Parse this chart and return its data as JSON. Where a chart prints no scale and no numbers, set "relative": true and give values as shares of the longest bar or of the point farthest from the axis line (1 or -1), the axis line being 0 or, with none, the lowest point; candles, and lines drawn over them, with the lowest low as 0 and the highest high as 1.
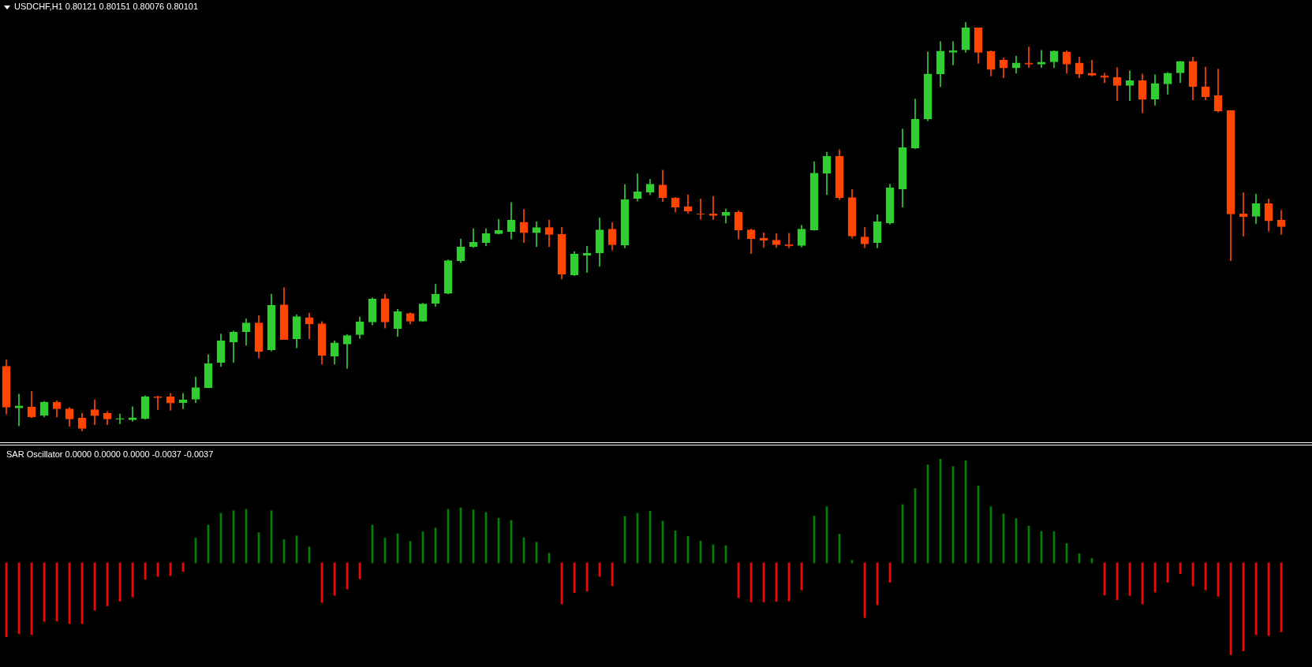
{
  "chart_data": [
    {
      "type": "candlestick",
      "title": "USDCHF,H1  0.80121 0.80151 0.80076 0.80101",
      "relative": true,
      "categories": [
        null,
        null,
        null,
        null,
        null,
        null,
        null,
        null,
        null,
        null,
        null,
        null,
        null,
        null,
        null,
        null,
        null,
        null,
        null,
        null,
        null,
        null,
        null,
        null,
        null,
        null,
        null,
        null,
        null,
        null,
        null,
        null,
        null,
        null,
        null,
        null,
        null,
        null,
        null,
        null,
        null,
        null,
        null,
        null,
        null,
        null,
        null,
        null,
        null,
        null,
        null,
        null,
        null,
        null,
        null,
        null,
        null,
        null,
        null,
        null,
        null,
        null,
        null,
        null,
        null,
        null,
        null,
        null,
        null,
        null,
        null,
        null,
        null,
        null,
        null,
        null,
        null,
        null,
        null,
        null,
        null,
        null,
        null,
        null,
        null,
        null,
        null,
        null,
        null,
        null,
        null,
        null,
        null,
        null,
        null,
        null,
        null,
        null,
        null,
        null,
        null,
        null
      ],
      "ohlc": [
        [
          0.159,
          0.174,
          0.042,
          0.059
        ],
        [
          0.057,
          0.091,
          0.013,
          0.062
        ],
        [
          0.059,
          0.097,
          0.033,
          0.035
        ],
        [
          0.039,
          0.073,
          0.035,
          0.071
        ],
        [
          0.071,
          0.075,
          0.035,
          0.055
        ],
        [
          0.055,
          0.058,
          0.012,
          0.03
        ],
        [
          0.032,
          0.044,
          0,
          0.007
        ],
        [
          0.053,
          0.077,
          0.016,
          0.038
        ],
        [
          0.044,
          0.048,
          0.016,
          0.03
        ],
        [
          0.029,
          0.042,
          0.018,
          0.031
        ],
        [
          0.028,
          0.06,
          0.024,
          0.033
        ],
        [
          0.031,
          0.087,
          0.029,
          0.084
        ],
        [
          0.084,
          0.086,
          0.053,
          0.082
        ],
        [
          0.084,
          0.093,
          0.051,
          0.069
        ],
        [
          0.07,
          0.093,
          0.055,
          0.077
        ],
        [
          0.078,
          0.133,
          0.07,
          0.107
        ],
        [
          0.106,
          0.187,
          0.106,
          0.165
        ],
        [
          0.168,
          0.238,
          0.158,
          0.221
        ],
        [
          0.218,
          0.245,
          0.168,
          0.242
        ],
        [
          0.243,
          0.275,
          0.21,
          0.265
        ],
        [
          0.265,
          0.283,
          0.179,
          0.195
        ],
        [
          0.199,
          0.335,
          0.196,
          0.308
        ],
        [
          0.309,
          0.351,
          0.224,
          0.224
        ],
        [
          0.226,
          0.285,
          0.204,
          0.28
        ],
        [
          0.278,
          0.289,
          0.226,
          0.262
        ],
        [
          0.263,
          0.268,
          0.164,
          0.185
        ],
        [
          0.183,
          0.221,
          0.164,
          0.216
        ],
        [
          0.213,
          0.237,
          0.154,
          0.234
        ],
        [
          0.236,
          0.279,
          0.227,
          0.267
        ],
        [
          0.267,
          0.326,
          0.26,
          0.323
        ],
        [
          0.324,
          0.335,
          0.252,
          0.267
        ],
        [
          0.251,
          0.298,
          0.232,
          0.292
        ],
        [
          0.288,
          0.29,
          0.262,
          0.269
        ],
        [
          0.269,
          0.313,
          0.268,
          0.311
        ],
        [
          0.313,
          0.359,
          0.305,
          0.335
        ],
        [
          0.337,
          0.419,
          0.336,
          0.417
        ],
        [
          0.417,
          0.47,
          0.412,
          0.45
        ],
        [
          0.451,
          0.495,
          0.449,
          0.462
        ],
        [
          0.461,
          0.495,
          0.453,
          0.483
        ],
        [
          0.483,
          0.518,
          0.482,
          0.491
        ],
        [
          0.488,
          0.559,
          0.47,
          0.516
        ],
        [
          0.511,
          0.542,
          0.461,
          0.485
        ],
        [
          0.485,
          0.512,
          0.451,
          0.498
        ],
        [
          0.498,
          0.516,
          0.451,
          0.481
        ],
        [
          0.481,
          0.499,
          0.372,
          0.384
        ],
        [
          0.382,
          0.439,
          0.38,
          0.433
        ],
        [
          0.43,
          0.452,
          0.388,
          0.435
        ],
        [
          0.436,
          0.522,
          0.403,
          0.492
        ],
        [
          0.494,
          0.51,
          0.443,
          0.456
        ],
        [
          0.455,
          0.603,
          0.448,
          0.566
        ],
        [
          0.569,
          0.63,
          0.563,
          0.585
        ],
        [
          0.584,
          0.616,
          0.578,
          0.604
        ],
        [
          0.602,
          0.638,
          0.562,
          0.571
        ],
        [
          0.57,
          0.571,
          0.536,
          0.548
        ],
        [
          0.549,
          0.578,
          0.533,
          0.538
        ],
        [
          0.531,
          0.568,
          0.518,
          0.53
        ],
        [
          0.531,
          0.574,
          0.517,
          0.527
        ],
        [
          0.527,
          0.543,
          0.509,
          0.535
        ],
        [
          0.535,
          0.539,
          0.47,
          0.492
        ],
        [
          0.492,
          0.494,
          0.434,
          0.471
        ],
        [
          0.472,
          0.485,
          0.449,
          0.467
        ],
        [
          0.467,
          0.483,
          0.449,
          0.456
        ],
        [
          0.456,
          0.484,
          0.448,
          0.453
        ],
        [
          0.454,
          0.503,
          0.45,
          0.494
        ],
        [
          0.492,
          0.659,
          0.491,
          0.631
        ],
        [
          0.63,
          0.682,
          0.578,
          0.672
        ],
        [
          0.672,
          0.688,
          0.566,
          0.571
        ],
        [
          0.571,
          0.591,
          0.472,
          0.477
        ],
        [
          0.475,
          0.498,
          0.448,
          0.458
        ],
        [
          0.461,
          0.529,
          0.448,
          0.512
        ],
        [
          0.509,
          0.604,
          0.506,
          0.595
        ],
        [
          0.592,
          0.739,
          0.548,
          0.693
        ],
        [
          0.692,
          0.812,
          0.691,
          0.763
        ],
        [
          0.763,
          0.927,
          0.759,
          0.873
        ],
        [
          0.873,
          0.952,
          0.842,
          0.929
        ],
        [
          0.926,
          0.952,
          0.895,
          0.93
        ],
        [
          0.932,
          1,
          0.926,
          0.986
        ],
        [
          0.986,
          0.986,
          0.899,
          0.926
        ],
        [
          0.928,
          0.93,
          0.868,
          0.884
        ],
        [
          0.907,
          0.912,
          0.864,
          0.888
        ],
        [
          0.888,
          0.917,
          0.875,
          0.9
        ],
        [
          0.9,
          0.939,
          0.889,
          0.897
        ],
        [
          0.897,
          0.931,
          0.889,
          0.902
        ],
        [
          0.903,
          0.93,
          0.889,
          0.929
        ],
        [
          0.927,
          0.93,
          0.875,
          0.897
        ],
        [
          0.9,
          0.915,
          0.864,
          0.873
        ],
        [
          0.875,
          0.907,
          0.868,
          0.87
        ],
        [
          0.869,
          0.875,
          0.852,
          0.865
        ],
        [
          0.865,
          0.889,
          0.808,
          0.845
        ],
        [
          0.845,
          0.881,
          0.808,
          0.857
        ],
        [
          0.857,
          0.873,
          0.778,
          0.811
        ],
        [
          0.812,
          0.871,
          0.797,
          0.85
        ],
        [
          0.849,
          0.877,
          0.824,
          0.875
        ],
        [
          0.876,
          0.904,
          0.852,
          0.904
        ],
        [
          0.904,
          0.914,
          0.81,
          0.842
        ],
        [
          0.842,
          0.89,
          0.81,
          0.817
        ],
        [
          0.82,
          0.885,
          0.78,
          0.783
        ],
        [
          0.784,
          0.784,
          0.417,
          0.531
        ],
        [
          0.531,
          0.583,
          0.477,
          0.524
        ],
        [
          0.525,
          0.58,
          0.507,
          0.556
        ],
        [
          0.556,
          0.568,
          0.489,
          0.514
        ],
        [
          0.516,
          0.54,
          0.481,
          0.5
        ]
      ],
      "colors": [
        "#ff4500",
        "#32cd32",
        "#ff4500",
        "#32cd32",
        "#ff4500",
        "#ff4500",
        "#ff4500",
        "#ff4500",
        "#ff4500",
        "#32cd32",
        "#32cd32",
        "#32cd32",
        "#ff4500",
        "#ff4500",
        "#32cd32",
        "#32cd32",
        "#32cd32",
        "#32cd32",
        "#32cd32",
        "#32cd32",
        "#ff4500",
        "#32cd32",
        "#ff4500",
        "#32cd32",
        "#ff4500",
        "#ff4500",
        "#32cd32",
        "#32cd32",
        "#32cd32",
        "#32cd32",
        "#ff4500",
        "#32cd32",
        "#ff4500",
        "#32cd32",
        "#32cd32",
        "#32cd32",
        "#32cd32",
        "#32cd32",
        "#32cd32",
        "#32cd32",
        "#32cd32",
        "#ff4500",
        "#32cd32",
        "#ff4500",
        "#ff4500",
        "#32cd32",
        "#32cd32",
        "#32cd32",
        "#ff4500",
        "#32cd32",
        "#32cd32",
        "#32cd32",
        "#ff4500",
        "#ff4500",
        "#ff4500",
        "#ff4500",
        "#ff4500",
        "#32cd32",
        "#ff4500",
        "#ff4500",
        "#ff4500",
        "#ff4500",
        "#ff4500",
        "#32cd32",
        "#32cd32",
        "#32cd32",
        "#ff4500",
        "#ff4500",
        "#ff4500",
        "#32cd32",
        "#32cd32",
        "#32cd32",
        "#32cd32",
        "#32cd32",
        "#32cd32",
        "#32cd32",
        "#32cd32",
        "#ff4500",
        "#ff4500",
        "#ff4500",
        "#32cd32",
        "#ff4500",
        "#32cd32",
        "#32cd32",
        "#ff4500",
        "#ff4500",
        "#ff4500",
        "#ff4500",
        "#ff4500",
        "#32cd32",
        "#ff4500",
        "#32cd32",
        "#32cd32",
        "#32cd32",
        "#ff4500",
        "#ff4500",
        "#ff4500",
        "#ff4500",
        "#ff4500",
        "#32cd32",
        "#ff4500",
        "#ff4500"
      ]
    },
    {
      "type": "bar",
      "title": "SAR Oscillator 0.0000 0.0000 0.0000 -0.0037 -0.0037",
      "relative": true,
      "categories": [
        null,
        null,
        null,
        null,
        null,
        null,
        null,
        null,
        null,
        null,
        null,
        null,
        null,
        null,
        null,
        null,
        null,
        null,
        null,
        null,
        null,
        null,
        null,
        null,
        null,
        null,
        null,
        null,
        null,
        null,
        null,
        null,
        null,
        null,
        null,
        null,
        null,
        null,
        null,
        null,
        null,
        null,
        null,
        null,
        null,
        null,
        null,
        null,
        null,
        null,
        null,
        null,
        null,
        null,
        null,
        null,
        null,
        null,
        null,
        null,
        null,
        null,
        null,
        null,
        null,
        null,
        null,
        null,
        null,
        null,
        null,
        null,
        null,
        null,
        null,
        null,
        null,
        null,
        null,
        null,
        null,
        null,
        null,
        null,
        null,
        null,
        null,
        null,
        null,
        null,
        null,
        null,
        null,
        null,
        null,
        null,
        null,
        null,
        null,
        null,
        null,
        null
      ],
      "values": [
        -0.709,
        -0.681,
        -0.689,
        -0.563,
        -0.559,
        -0.583,
        -0.583,
        -0.454,
        -0.413,
        -0.369,
        -0.328,
        -0.158,
        -0.13,
        -0.122,
        -0.081,
        0.239,
        0.365,
        0.478,
        0.502,
        0.515,
        0.292,
        0.502,
        0.223,
        0.259,
        0.154,
        -0.381,
        -0.312,
        -0.251,
        -0.154,
        0.365,
        0.239,
        0.28,
        0.207,
        0.3,
        0.336,
        0.515,
        0.531,
        0.511,
        0.486,
        0.43,
        0.409,
        0.243,
        0.199,
        0.093,
        -0.393,
        -0.284,
        -0.271,
        -0.13,
        -0.219,
        0.446,
        0.478,
        0.498,
        0.402,
        0.309,
        0.256,
        0.211,
        0.175,
        0.167,
        -0.333,
        -0.374,
        -0.374,
        -0.37,
        -0.366,
        -0.26,
        0.451,
        0.541,
        0.277,
        0.024,
        -0.525,
        -0.403,
        -0.187,
        0.561,
        0.716,
        0.943,
        1,
        0.927,
        0.984,
        0.74,
        0.541,
        0.472,
        0.427,
        0.354,
        0.305,
        0.301,
        0.187,
        0.089,
        0.045,
        -0.309,
        -0.354,
        -0.313,
        -0.394,
        -0.281,
        -0.187,
        -0.102,
        -0.22,
        -0.26,
        -0.321,
        -0.882,
        -0.846,
        -0.691,
        -0.699,
        -0.663
      ],
      "colors": [
        "#ff0000",
        "#ff0000",
        "#ff0000",
        "#ff0000",
        "#ff0000",
        "#ff0000",
        "#ff0000",
        "#ff0000",
        "#ff0000",
        "#ff0000",
        "#ff0000",
        "#ff0000",
        "#ff0000",
        "#ff0000",
        "#ff0000",
        "#008000",
        "#008000",
        "#008000",
        "#008000",
        "#008000",
        "#008000",
        "#008000",
        "#008000",
        "#008000",
        "#008000",
        "#ff0000",
        "#ff0000",
        "#ff0000",
        "#ff0000",
        "#008000",
        "#008000",
        "#008000",
        "#008000",
        "#008000",
        "#008000",
        "#008000",
        "#008000",
        "#008000",
        "#008000",
        "#008000",
        "#008000",
        "#008000",
        "#008000",
        "#008000",
        "#ff0000",
        "#ff0000",
        "#ff0000",
        "#ff0000",
        "#ff0000",
        "#008000",
        "#008000",
        "#008000",
        "#008000",
        "#008000",
        "#008000",
        "#008000",
        "#008000",
        "#008000",
        "#ff0000",
        "#ff0000",
        "#ff0000",
        "#ff0000",
        "#ff0000",
        "#ff0000",
        "#008000",
        "#008000",
        "#008000",
        "#008000",
        "#ff0000",
        "#ff0000",
        "#ff0000",
        "#008000",
        "#008000",
        "#008000",
        "#008000",
        "#008000",
        "#008000",
        "#008000",
        "#008000",
        "#008000",
        "#008000",
        "#008000",
        "#008000",
        "#008000",
        "#008000",
        "#008000",
        "#008000",
        "#ff0000",
        "#ff0000",
        "#ff0000",
        "#ff0000",
        "#ff0000",
        "#ff0000",
        "#ff0000",
        "#ff0000",
        "#ff0000",
        "#ff0000",
        "#ff0000",
        "#ff0000",
        "#ff0000",
        "#ff0000",
        "#ff0000"
      ]
    }
  ]
}
